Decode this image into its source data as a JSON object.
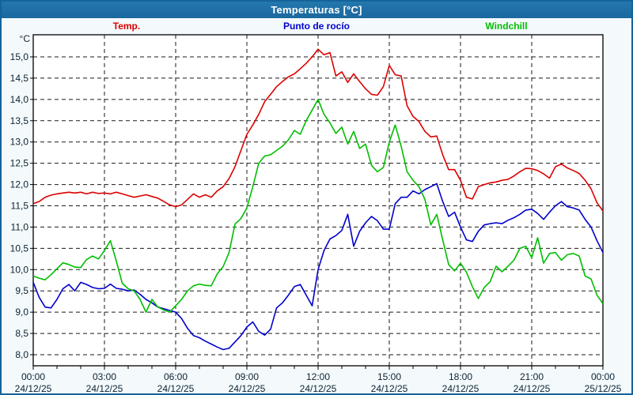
{
  "window": {
    "title": "Temperaturas [°C]",
    "titlebar_color": "#1E6DA0",
    "border_color": "#14639B",
    "background_color": "#F4FAFC",
    "plot_background_color": "#FFFFFF"
  },
  "legend": [
    {
      "label": "Temp.",
      "color": "#DD0000"
    },
    {
      "label": "Punto de rocío",
      "color": "#0000CC"
    },
    {
      "label": "Windchill",
      "color": "#00BE00"
    }
  ],
  "chart_data": {
    "type": "line",
    "title": "Temperaturas [°C]",
    "y_unit_label": "°C",
    "ylim": [
      7.74,
      15.52
    ],
    "grid": true,
    "grid_color": "#1A1A1A",
    "axis_color": "#000000",
    "label_color": "#0B2233",
    "x_start_hour": 0,
    "x_end_hour": 24,
    "step_hours": 0.25,
    "x_minor_tick_hours": 1,
    "y_ticks": [
      {
        "value": 15.0,
        "label": "15,0"
      },
      {
        "value": 14.5,
        "label": "14,5"
      },
      {
        "value": 14.0,
        "label": "14,0"
      },
      {
        "value": 13.5,
        "label": "13,5"
      },
      {
        "value": 13.0,
        "label": "13,0"
      },
      {
        "value": 12.5,
        "label": "12,5"
      },
      {
        "value": 12.0,
        "label": "12,0"
      },
      {
        "value": 11.5,
        "label": "11,5"
      },
      {
        "value": 11.0,
        "label": "11,0"
      },
      {
        "value": 10.5,
        "label": "10,5"
      },
      {
        "value": 10.0,
        "label": "10,0"
      },
      {
        "value": 9.5,
        "label": "9,5"
      },
      {
        "value": 9.0,
        "label": "9,0"
      },
      {
        "value": 8.5,
        "label": "8,5"
      },
      {
        "value": 8.0,
        "label": "8,0"
      }
    ],
    "x_ticks": [
      {
        "hour": 0,
        "time": "00:00",
        "date": "24/12/25"
      },
      {
        "hour": 3,
        "time": "03:00",
        "date": "24/12/25"
      },
      {
        "hour": 6,
        "time": "06:00",
        "date": "24/12/25"
      },
      {
        "hour": 9,
        "time": "09:00",
        "date": "24/12/25"
      },
      {
        "hour": 12,
        "time": "12:00",
        "date": "24/12/25"
      },
      {
        "hour": 15,
        "time": "15:00",
        "date": "24/12/25"
      },
      {
        "hour": 18,
        "time": "18:00",
        "date": "24/12/25"
      },
      {
        "hour": 21,
        "time": "21:00",
        "date": "24/12/25"
      },
      {
        "hour": 24,
        "time": "00:00",
        "date": "25/12/25"
      }
    ],
    "series": [
      {
        "name": "Temp.",
        "color": "#DD0000",
        "values": [
          11.55,
          11.6,
          11.7,
          11.75,
          11.78,
          11.8,
          11.82,
          11.8,
          11.82,
          11.78,
          11.82,
          11.79,
          11.8,
          11.78,
          11.82,
          11.78,
          11.74,
          11.7,
          11.73,
          11.76,
          11.72,
          11.68,
          11.6,
          11.52,
          11.48,
          11.52,
          11.65,
          11.78,
          11.7,
          11.76,
          11.7,
          11.85,
          11.95,
          12.14,
          12.42,
          12.8,
          13.18,
          13.4,
          13.65,
          13.95,
          14.12,
          14.3,
          14.42,
          14.53,
          14.6,
          14.72,
          14.85,
          15.0,
          15.18,
          15.05,
          15.1,
          14.55,
          14.65,
          14.4,
          14.6,
          14.42,
          14.25,
          14.12,
          14.1,
          14.3,
          14.8,
          14.58,
          14.55,
          13.85,
          13.6,
          13.48,
          13.25,
          13.12,
          13.14,
          12.7,
          12.35,
          12.35,
          12.1,
          11.7,
          11.66,
          11.95,
          12.0,
          12.04,
          12.06,
          12.1,
          12.12,
          12.2,
          12.3,
          12.38,
          12.37,
          12.33,
          12.25,
          12.15,
          12.42,
          12.48,
          12.39,
          12.33,
          12.26,
          12.1,
          11.9,
          11.57,
          11.38
        ]
      },
      {
        "name": "Punto de rocío",
        "color": "#0000CC",
        "values": [
          9.7,
          9.35,
          9.12,
          9.1,
          9.3,
          9.55,
          9.65,
          9.5,
          9.7,
          9.65,
          9.58,
          9.55,
          9.56,
          9.66,
          9.56,
          9.54,
          9.5,
          9.52,
          9.42,
          9.3,
          9.22,
          9.12,
          9.08,
          9.04,
          9.0,
          8.85,
          8.62,
          8.45,
          8.4,
          8.32,
          8.25,
          8.18,
          8.12,
          8.15,
          8.3,
          8.45,
          8.65,
          8.77,
          8.55,
          8.46,
          8.6,
          9.1,
          9.22,
          9.4,
          9.6,
          9.65,
          9.4,
          9.15,
          10.0,
          10.45,
          10.72,
          10.8,
          10.92,
          11.3,
          10.55,
          10.9,
          11.1,
          11.25,
          11.15,
          10.95,
          10.95,
          11.55,
          11.7,
          11.7,
          11.85,
          11.78,
          11.88,
          11.95,
          12.02,
          11.6,
          11.25,
          11.35,
          11.0,
          10.7,
          10.66,
          10.9,
          11.05,
          11.08,
          11.1,
          11.08,
          11.16,
          11.22,
          11.3,
          11.4,
          11.42,
          11.32,
          11.18,
          11.35,
          11.5,
          11.6,
          11.48,
          11.45,
          11.4,
          11.18,
          11.0,
          10.68,
          10.4
        ]
      },
      {
        "name": "Windchill",
        "color": "#00BE00",
        "values": [
          9.85,
          9.8,
          9.76,
          9.88,
          10.02,
          10.16,
          10.12,
          10.06,
          10.05,
          10.24,
          10.32,
          10.25,
          10.45,
          10.68,
          10.2,
          9.68,
          9.55,
          9.5,
          9.3,
          9.0,
          9.3,
          9.12,
          9.05,
          9.0,
          9.15,
          9.3,
          9.5,
          9.62,
          9.66,
          9.63,
          9.62,
          9.9,
          10.07,
          10.4,
          11.07,
          11.2,
          11.45,
          11.95,
          12.5,
          12.67,
          12.7,
          12.8,
          12.9,
          13.05,
          13.27,
          13.18,
          13.5,
          13.75,
          14.0,
          13.65,
          13.45,
          13.2,
          13.35,
          12.95,
          13.25,
          12.85,
          12.95,
          12.45,
          12.3,
          12.4,
          13.0,
          13.4,
          12.9,
          12.3,
          12.1,
          11.95,
          11.65,
          11.05,
          11.3,
          10.7,
          10.12,
          9.97,
          10.15,
          9.94,
          9.6,
          9.32,
          9.58,
          9.72,
          10.08,
          9.95,
          10.08,
          10.22,
          10.5,
          10.55,
          10.28,
          10.75,
          10.15,
          10.38,
          10.4,
          10.22,
          10.35,
          10.38,
          10.32,
          9.85,
          9.78,
          9.4,
          9.2
        ]
      }
    ]
  }
}
